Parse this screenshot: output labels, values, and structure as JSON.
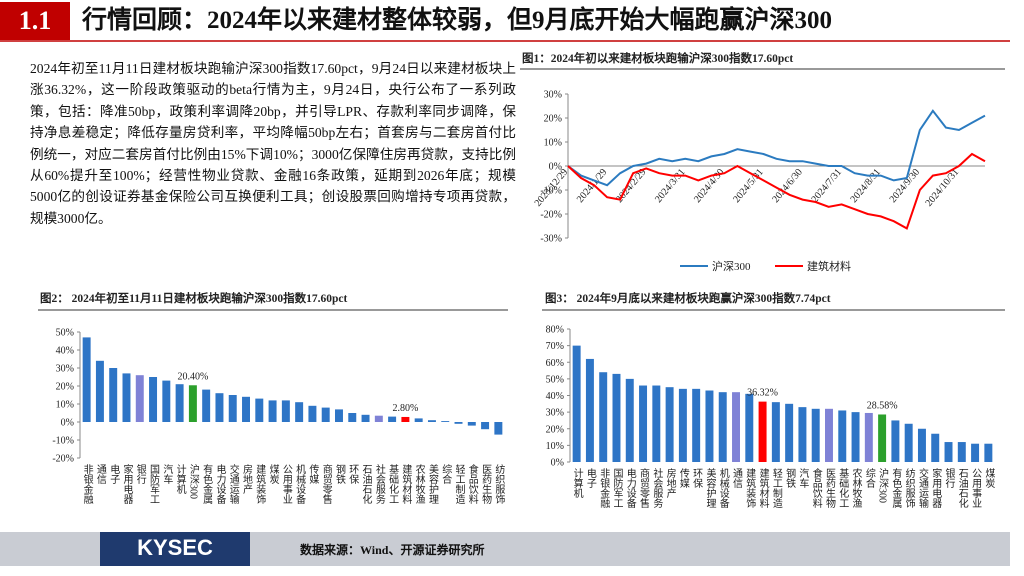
{
  "header": {
    "section": "1.1",
    "title": "行情回顾：2024年以来建材整体较弱，但9月底开始大幅跑赢沪深300"
  },
  "paragraph": "2024年初至11月11日建材板块跑输沪深300指数17.60pct，9月24日以来建材板块上涨36.32%，这一阶段政策驱动的beta行情为主，9月24日，央行公布了一系列政策，包括：降准50bp，政策利率调降20bp，并引导LPR、存款利率同步调降，保持净息差稳定；降低存量房贷利率，平均降幅50bp左右；首套房与二套房首付比例统一，对应二套房首付比例由15%下调10%；3000亿保障住房再贷款，支持比例从60%提升至100%；经营性物业贷款、金融16条政策，延期到2026年底；规模5000亿的创设证券基金保险公司互换便利工具；创设股票回购增持专项再贷款，规模3000亿。",
  "footer": {
    "logo": "KYSEC",
    "source": "数据来源：Wind、开源证券研究所"
  },
  "chart_data": [
    {
      "type": "line",
      "title": "图1：2024年初以来建材板块跑输沪深300指数17.60pct",
      "categories": [
        "2023/12/29",
        null,
        null,
        "2024/1/29",
        null,
        null,
        "2024/2/29",
        null,
        null,
        "2024/3/31",
        null,
        null,
        "2024/4/30",
        null,
        null,
        "2024/5/31",
        null,
        null,
        "2024/6/30",
        null,
        null,
        "2024/7/31",
        null,
        null,
        "2024/8/31",
        null,
        null,
        "2024/9/30",
        null,
        null,
        "2024/10/31",
        null,
        null
      ],
      "series": [
        {
          "name": "沪深300",
          "color": "#2b7bc0",
          "values": [
            0,
            -4,
            -6,
            -8,
            -3,
            0,
            1,
            3,
            2,
            3,
            2,
            4,
            5,
            7,
            6,
            5,
            3,
            2,
            2,
            1,
            0,
            0,
            -3,
            -4,
            -4,
            -6,
            -5,
            15,
            23,
            16,
            15,
            18,
            21
          ]
        },
        {
          "name": "建筑材料",
          "color": "#ff0000",
          "values": [
            0,
            -5,
            -8,
            -13,
            -14,
            -3,
            -1,
            -3,
            -4,
            -4,
            -6,
            -4,
            -3,
            0,
            -3,
            -6,
            -9,
            -12,
            -14,
            -15,
            -17,
            -16,
            -18,
            -20,
            -21,
            -23,
            -26,
            -10,
            -4,
            -3,
            0,
            5,
            2
          ]
        }
      ],
      "ylim": [
        -30,
        30
      ],
      "yticks": [
        {
          "value": -30,
          "label": "-30%"
        },
        {
          "value": -20,
          "label": "-20%"
        },
        {
          "value": -10,
          "label": "-10%"
        },
        {
          "value": 0,
          "label": "0%"
        },
        {
          "value": 10,
          "label": "10%"
        },
        {
          "value": 20,
          "label": "20%"
        },
        {
          "value": 30,
          "label": "30%"
        }
      ],
      "legend": "bottom"
    },
    {
      "type": "bar",
      "title": "图2：  2024年初至11月11日建材板块跑输沪深300指数17.60pct",
      "categories": [
        "非银金融",
        "通信",
        "电子",
        "家用电器",
        "银行",
        "国防军工",
        "汽车",
        "计算机",
        "沪深300",
        "有色金属",
        "电力设备",
        "交通运输",
        "房地产",
        "建筑装饰",
        "煤炭",
        "公用事业",
        "机械设备",
        "传媒",
        "商贸零售",
        "钢铁",
        "环保",
        "石油石化",
        "社会服务",
        "基础化工",
        "建筑材料",
        "农林牧渔",
        "美容护理",
        "综合",
        "轻工制造",
        "食品饮料",
        "医药生物",
        "纺织服饰"
      ],
      "values": [
        47,
        34,
        30,
        27,
        26,
        25,
        23,
        21,
        20.4,
        18,
        16,
        15,
        14,
        13,
        12,
        12,
        11,
        9,
        8,
        7,
        5,
        4,
        3.5,
        3,
        2.8,
        2,
        1,
        0.5,
        -1,
        -2,
        -4,
        -7
      ],
      "value_labels": [
        null,
        null,
        null,
        null,
        null,
        null,
        null,
        null,
        "20.40%",
        null,
        null,
        null,
        null,
        null,
        null,
        null,
        null,
        null,
        null,
        null,
        null,
        null,
        null,
        null,
        "2.80%",
        null,
        null,
        null,
        null,
        null,
        null,
        null
      ],
      "colors": [
        "#2e75c6",
        "#2e75c6",
        "#2e75c6",
        "#2e75c6",
        "#7f82d6",
        "#2e75c6",
        "#2e75c6",
        "#2e75c6",
        "#2ca02c",
        "#2e75c6",
        "#2e75c6",
        "#2e75c6",
        "#2e75c6",
        "#2e75c6",
        "#2e75c6",
        "#2e75c6",
        "#2e75c6",
        "#2e75c6",
        "#2e75c6",
        "#2e75c6",
        "#2e75c6",
        "#2e75c6",
        "#7f82d6",
        "#2e75c6",
        "#ff0000",
        "#2e75c6",
        "#2e75c6",
        "#2e75c6",
        "#2e75c6",
        "#2e75c6",
        "#2e75c6",
        "#2e75c6"
      ],
      "ylim": [
        -20,
        50
      ],
      "yticks": [
        {
          "value": -20,
          "label": "-20%"
        },
        {
          "value": -10,
          "label": "-10%"
        },
        {
          "value": 0,
          "label": "0%"
        },
        {
          "value": 10,
          "label": "10%"
        },
        {
          "value": 20,
          "label": "20%"
        },
        {
          "value": 30,
          "label": "30%"
        },
        {
          "value": 40,
          "label": "40%"
        },
        {
          "value": 50,
          "label": "50%"
        }
      ]
    },
    {
      "type": "bar",
      "title": "图3：  2024年9月底以来建材板块跑赢沪深300指数7.74pct",
      "categories": [
        "计算机",
        "电子",
        "非银金融",
        "国防军工",
        "电力设备",
        "商贸零售",
        "社会服务",
        "房地产",
        "传媒",
        "环保",
        "美容护理",
        "机械设备",
        "通信",
        "建筑装饰",
        "建筑材料",
        "轻工制造",
        "钢铁",
        "汽车",
        "食品饮料",
        "医药生物",
        "基础化工",
        "农林牧渔",
        "综合",
        "沪深300",
        "有色金属",
        "纺织服饰",
        "交通运输",
        "家用电器",
        "银行",
        "石油石化",
        "公用事业",
        "煤炭"
      ],
      "values": [
        70,
        62,
        54,
        53,
        50,
        46,
        46,
        45,
        44,
        44,
        43,
        42,
        42,
        41,
        36.32,
        36,
        35,
        33,
        32,
        32,
        31,
        30,
        29.5,
        28.58,
        25,
        23,
        20,
        17,
        12,
        12,
        11,
        11
      ],
      "value_labels": [
        null,
        null,
        null,
        null,
        null,
        null,
        null,
        null,
        null,
        null,
        null,
        null,
        null,
        null,
        "36.32%",
        null,
        null,
        null,
        null,
        null,
        null,
        null,
        null,
        "28.58%",
        null,
        null,
        null,
        null,
        null,
        null,
        null,
        null
      ],
      "colors": [
        "#2e75c6",
        "#2e75c6",
        "#2e75c6",
        "#2e75c6",
        "#2e75c6",
        "#2e75c6",
        "#2e75c6",
        "#2e75c6",
        "#2e75c6",
        "#2e75c6",
        "#2e75c6",
        "#2e75c6",
        "#7f82d6",
        "#2e75c6",
        "#ff0000",
        "#2e75c6",
        "#2e75c6",
        "#2e75c6",
        "#2e75c6",
        "#7f82d6",
        "#2e75c6",
        "#2e75c6",
        "#7f82d6",
        "#2ca02c",
        "#2e75c6",
        "#2e75c6",
        "#2e75c6",
        "#2e75c6",
        "#2e75c6",
        "#2e75c6",
        "#2e75c6",
        "#2e75c6"
      ],
      "ylim": [
        0,
        80
      ],
      "yticks": [
        {
          "value": 0,
          "label": "0%"
        },
        {
          "value": 10,
          "label": "10%"
        },
        {
          "value": 20,
          "label": "20%"
        },
        {
          "value": 30,
          "label": "30%"
        },
        {
          "value": 40,
          "label": "40%"
        },
        {
          "value": 50,
          "label": "50%"
        },
        {
          "value": 60,
          "label": "60%"
        },
        {
          "value": 70,
          "label": "70%"
        },
        {
          "value": 80,
          "label": "80%"
        }
      ]
    }
  ]
}
